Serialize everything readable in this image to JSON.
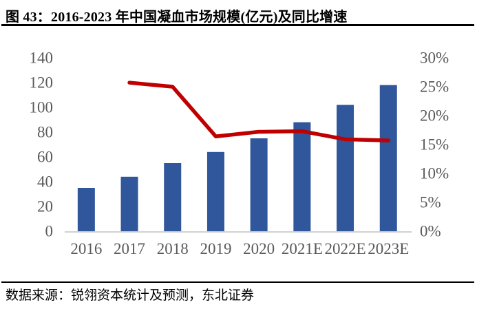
{
  "title": "图 43：2016-2023 年中国凝血市场规模(亿元)及同比增速",
  "source": "数据来源：锐翎资本统计及预测，东北证券",
  "colors": {
    "bar": "#30569B",
    "line": "#C00000",
    "axis_text": "#595959",
    "axis_line": "#D2D0D0",
    "rule": "#000000"
  },
  "chart_data": {
    "type": "bar",
    "title": "2016-2023 年中国凝血市场规模(亿元)及同比增速",
    "categories": [
      "2016",
      "2017",
      "2018",
      "2019",
      "2020",
      "2021E",
      "2022E",
      "2023E"
    ],
    "series": [
      {
        "name": "中国凝血市场规模(亿元)",
        "type": "bar",
        "axis": "left",
        "color": "#30569B",
        "values": [
          35,
          44,
          55,
          64,
          75,
          88,
          102,
          118
        ]
      },
      {
        "name": "同比增速",
        "type": "line",
        "axis": "right",
        "color": "#C00000",
        "values": [
          null,
          25.7,
          25.0,
          16.4,
          17.2,
          17.3,
          15.9,
          15.7
        ]
      }
    ],
    "left_axis": {
      "min": 0,
      "max": 140,
      "step": 20,
      "tick_labels": [
        "0",
        "20",
        "40",
        "60",
        "80",
        "100",
        "120",
        "140"
      ]
    },
    "right_axis": {
      "min": 0,
      "max": 30,
      "step": 5,
      "tick_labels": [
        "0%",
        "5%",
        "10%",
        "15%",
        "20%",
        "25%",
        "30%"
      ]
    },
    "grid": false,
    "legend_position": "none"
  }
}
